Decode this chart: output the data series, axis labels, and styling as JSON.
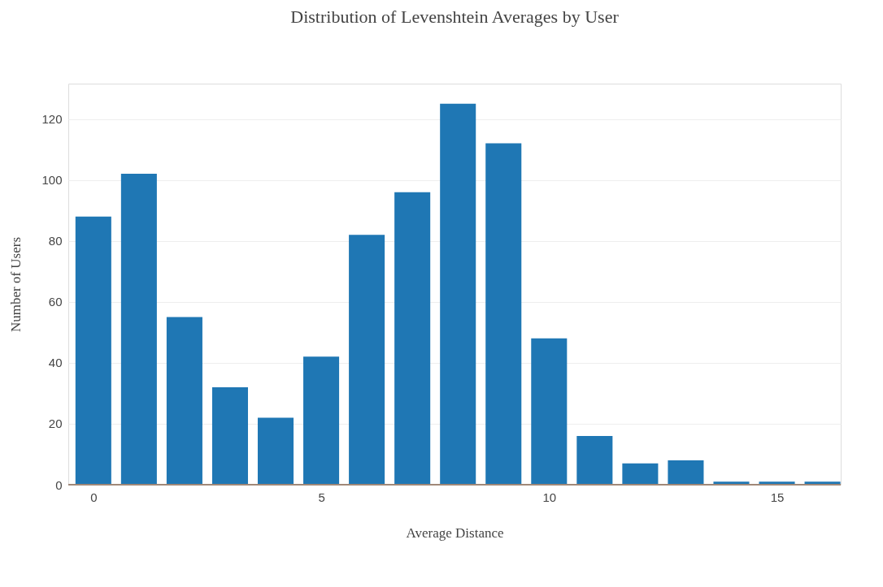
{
  "chart_data": {
    "type": "histogram",
    "title": "Distribution of Levenshtein Averages by User",
    "xlabel": "Average Distance",
    "ylabel": "Number of Users",
    "bins": [
      -0.5,
      0.5,
      1.5,
      2.5,
      3.5,
      4.5,
      5.5,
      6.5,
      7.5,
      8.5,
      9.5,
      10.5,
      11.5,
      12.5,
      13.5,
      14.5,
      15.5,
      16.5
    ],
    "values": [
      88,
      102,
      55,
      32,
      22,
      42,
      82,
      96,
      125,
      112,
      48,
      16,
      7,
      8,
      1,
      1,
      1
    ],
    "color": "#1f77b4",
    "xlim": [
      -0.55,
      16.4
    ],
    "ylim": [
      0,
      131.6
    ],
    "xticks": [
      0,
      5,
      10,
      15
    ],
    "yticks": [
      0,
      20,
      40,
      60,
      80,
      100,
      120
    ],
    "grid": "y"
  }
}
